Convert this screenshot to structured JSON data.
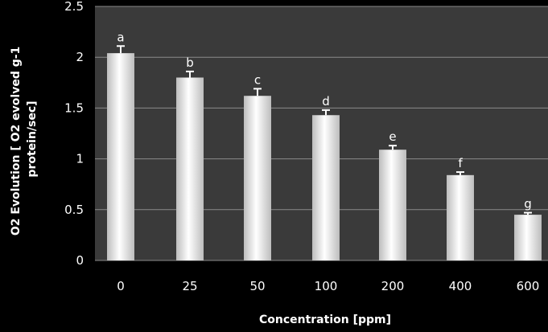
{
  "chart_data": {
    "type": "bar",
    "title": "",
    "xlabel": "Concentration [ppm]",
    "ylabel_line1": "O2 Evolution [ O2 evolved g-1",
    "ylabel_line2": "protein/sec]",
    "categories": [
      "0",
      "25",
      "50",
      "100",
      "200",
      "400",
      "600"
    ],
    "values": [
      2.04,
      1.8,
      1.62,
      1.43,
      1.09,
      0.84,
      0.45
    ],
    "errors": [
      0.07,
      0.06,
      0.07,
      0.05,
      0.04,
      0.03,
      0.02
    ],
    "significance_letters": [
      "a",
      "b",
      "c",
      "d",
      "e",
      "f",
      "g"
    ],
    "ylim": [
      0,
      2.5
    ],
    "yticks": [
      "0",
      "0.5",
      "1",
      "1.5",
      "2",
      "2.5"
    ],
    "ytick_values": [
      0,
      0.5,
      1,
      1.5,
      2,
      2.5
    ],
    "grid": true,
    "legend": "none",
    "colors": {
      "background": "#000000",
      "plot_area": "#3a3a3a",
      "gridline": "#8a8a8a",
      "bar_edge": "#bdbdbd",
      "bar_center": "#ffffff",
      "text": "#ffffff"
    }
  }
}
